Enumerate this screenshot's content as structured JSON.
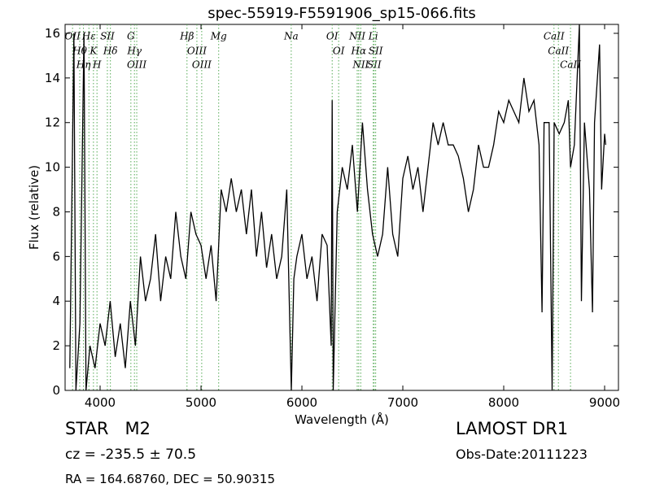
{
  "chart_data": {
    "type": "line",
    "title": "spec-55919-F5591906_sp15-066.fits",
    "x_label": "Wavelength (Å)",
    "y_label": "Flux (relative)",
    "x": [
      3700,
      3740,
      3760,
      3800,
      3840,
      3860,
      3900,
      3950,
      4000,
      4050,
      4100,
      4150,
      4200,
      4250,
      4300,
      4350,
      4400,
      4450,
      4500,
      4550,
      4600,
      4650,
      4700,
      4750,
      4800,
      4850,
      4900,
      4950,
      5000,
      5050,
      5100,
      5150,
      5200,
      5250,
      5300,
      5350,
      5400,
      5450,
      5500,
      5550,
      5600,
      5650,
      5700,
      5750,
      5800,
      5850,
      5880,
      5895,
      5920,
      5950,
      6000,
      6050,
      6100,
      6150,
      6200,
      6250,
      6290,
      6300,
      6310,
      6350,
      6400,
      6450,
      6500,
      6550,
      6600,
      6650,
      6700,
      6750,
      6800,
      6850,
      6900,
      6950,
      7000,
      7050,
      7100,
      7150,
      7200,
      7250,
      7300,
      7350,
      7400,
      7450,
      7500,
      7550,
      7600,
      7650,
      7700,
      7750,
      7800,
      7850,
      7900,
      7950,
      8000,
      8050,
      8100,
      8150,
      8200,
      8250,
      8300,
      8350,
      8380,
      8400,
      8450,
      8480,
      8500,
      8550,
      8600,
      8640,
      8662,
      8700,
      8750,
      8770,
      8800,
      8850,
      8880,
      8900,
      8950,
      8970,
      9000,
      9010
    ],
    "series": [
      {
        "name": "flux",
        "color": "#000000",
        "values": [
          1,
          16,
          0,
          3,
          16,
          0,
          2,
          1,
          3,
          2,
          4,
          1.5,
          3,
          1,
          4,
          2,
          6,
          4,
          5,
          7,
          4,
          6,
          5,
          8,
          6,
          5,
          8,
          7,
          6.5,
          5,
          6.5,
          4,
          9,
          8,
          9.5,
          8,
          9,
          7,
          9,
          6,
          8,
          5.5,
          7,
          5,
          6,
          9,
          3,
          0,
          5,
          6,
          7,
          5,
          6,
          4,
          7,
          6.5,
          2,
          13,
          0,
          8,
          10,
          9,
          11,
          8,
          12,
          9,
          7,
          6,
          7,
          10,
          7,
          6,
          9.5,
          10.5,
          9,
          10,
          8,
          10,
          12,
          11,
          12,
          11,
          11,
          10.5,
          9.5,
          8,
          9,
          11,
          10,
          10,
          11,
          12.5,
          12,
          13,
          12.5,
          12,
          14,
          12.5,
          13,
          11,
          3.5,
          12,
          12,
          0,
          12,
          11.5,
          12,
          13,
          10,
          11,
          16.4,
          4,
          12,
          9,
          3.5,
          12,
          15.5,
          9,
          11.5,
          11
        ]
      }
    ],
    "xlim": [
      3653,
      9137
    ],
    "ylim": [
      0,
      16.4
    ],
    "xticks": [
      4000,
      5000,
      6000,
      7000,
      8000,
      9000
    ],
    "yticks": [
      0,
      2,
      4,
      6,
      8,
      10,
      12,
      14,
      16
    ],
    "line_color": "#55aa55",
    "lines": [
      {
        "label": "OII",
        "wavelength": 3727
      },
      {
        "label": "Hθ",
        "wavelength": 3798
      },
      {
        "label": "Hη",
        "wavelength": 3835
      },
      {
        "label": "Hε",
        "wavelength": 3889
      },
      {
        "label": "K",
        "wavelength": 3934
      },
      {
        "label": "H",
        "wavelength": 3969
      },
      {
        "label": "SII",
        "wavelength": 4072
      },
      {
        "label": "Hδ",
        "wavelength": 4102
      },
      {
        "label": "G",
        "wavelength": 4305
      },
      {
        "label": "Hγ",
        "wavelength": 4340
      },
      {
        "label": "OIII",
        "wavelength": 4363
      },
      {
        "label": "Hβ",
        "wavelength": 4861
      },
      {
        "label": "OIII",
        "wavelength": 4959
      },
      {
        "label": "OIII",
        "wavelength": 5007
      },
      {
        "label": "Mg",
        "wavelength": 5175
      },
      {
        "label": "Na",
        "wavelength": 5894
      },
      {
        "label": "OI",
        "wavelength": 6300
      },
      {
        "label": "OI",
        "wavelength": 6364
      },
      {
        "label": "NII",
        "wavelength": 6548
      },
      {
        "label": "Hα",
        "wavelength": 6563
      },
      {
        "label": "NII",
        "wavelength": 6583
      },
      {
        "label": "Li",
        "wavelength": 6707
      },
      {
        "label": "SII",
        "wavelength": 6716
      },
      {
        "label": "SII",
        "wavelength": 6731
      },
      {
        "label": "CaII",
        "wavelength": 8498
      },
      {
        "label": "CaII",
        "wavelength": 8542
      },
      {
        "label": "CaII",
        "wavelength": 8662
      }
    ],
    "object_class": "STAR   M2",
    "redshift": "cz = -235.5 ± 70.5",
    "position": "RA = 164.68760, DEC = 50.90315",
    "survey": "LAMOST DR1",
    "obs_date": "Obs-Date:20111223"
  }
}
